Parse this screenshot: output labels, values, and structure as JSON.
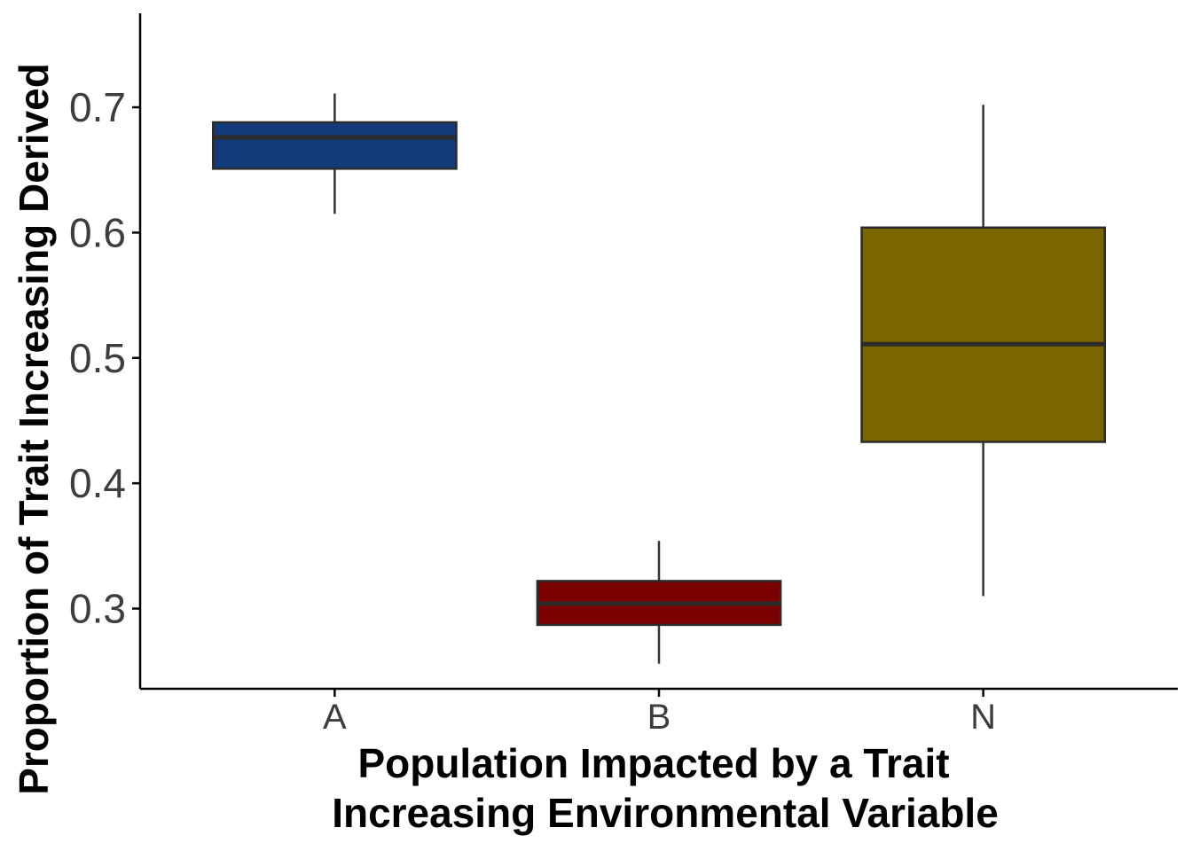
{
  "chart_data": {
    "type": "boxplot",
    "xlabel_lines": [
      "Population Impacted by a Trait",
      "Increasing Environmental Variable"
    ],
    "ylabel": "Proportion of Trait Increasing Derived",
    "ylim": [
      0.236,
      0.775
    ],
    "yticks": [
      0.3,
      0.4,
      0.5,
      0.6,
      0.7
    ],
    "ytick_labels": [
      "0.3",
      "0.4",
      "0.5",
      "0.6",
      "0.7"
    ],
    "grid": false,
    "legend": "none",
    "categories": [
      "A",
      "B",
      "N"
    ],
    "series": [
      {
        "category": "A",
        "whisker_low": 0.615,
        "q1": 0.651,
        "median": 0.676,
        "q3": 0.688,
        "whisker_high": 0.711,
        "color": "#133b7a"
      },
      {
        "category": "B",
        "whisker_low": 0.256,
        "q1": 0.287,
        "median": 0.304,
        "q3": 0.322,
        "whisker_high": 0.354,
        "color": "#7b0000"
      },
      {
        "category": "N",
        "whisker_low": 0.31,
        "q1": 0.433,
        "median": 0.511,
        "q3": 0.604,
        "whisker_high": 0.702,
        "color": "#7a6500"
      }
    ]
  }
}
